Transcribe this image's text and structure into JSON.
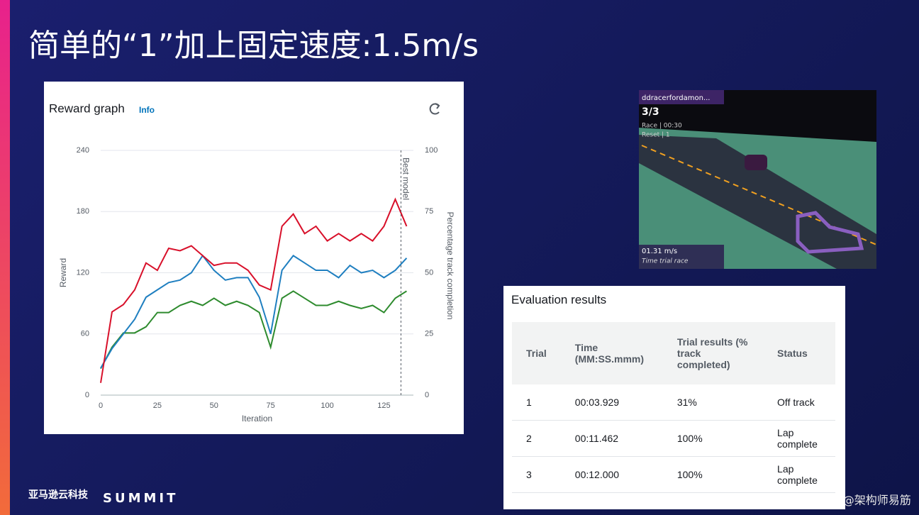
{
  "slide": {
    "title": "简单的“1”加上固定速度:1.5m/s",
    "brand": "亚马逊云科技",
    "event": "SUMMIT",
    "watermark": "CSDN @架构师易筋"
  },
  "panel": {
    "title": "Reward graph",
    "info": "Info"
  },
  "chart_data": {
    "type": "line",
    "x": [
      0,
      5,
      10,
      15,
      20,
      25,
      30,
      35,
      40,
      45,
      50,
      55,
      60,
      65,
      70,
      75,
      80,
      85,
      90,
      95,
      100,
      105,
      110,
      115,
      120,
      125,
      130,
      135
    ],
    "series": [
      {
        "color": "#2e8b2e",
        "values": [
          26,
          47,
          61,
          61,
          67,
          81,
          81,
          88,
          92,
          88,
          95,
          88,
          92,
          88,
          81,
          47,
          95,
          102,
          95,
          88,
          88,
          92,
          88,
          85,
          88,
          81,
          95,
          102
        ]
      },
      {
        "color": "#1f7fc0",
        "axis": "y2",
        "values": [
          11,
          19,
          25,
          31,
          40,
          43,
          46,
          47,
          50,
          57,
          51,
          47,
          48,
          48,
          40,
          25,
          51,
          57,
          54,
          51,
          51,
          48,
          53,
          50,
          51,
          48,
          51,
          56
        ]
      },
      {
        "color": "#d8102a",
        "axis": "y2",
        "values": [
          5,
          34,
          37,
          43,
          54,
          51,
          60,
          59,
          61,
          57,
          53,
          54,
          54,
          51,
          45,
          43,
          69,
          74,
          66,
          69,
          63,
          66,
          63,
          66,
          63,
          69,
          80,
          69
        ]
      }
    ],
    "xlim": [
      0,
      138
    ],
    "xticks": [
      0,
      25,
      50,
      75,
      100,
      125
    ],
    "ylim": [
      0,
      240
    ],
    "yticks": [
      0,
      60,
      120,
      180,
      240
    ],
    "y2lim": [
      0,
      100
    ],
    "y2ticks": [
      0,
      25,
      50,
      75,
      100
    ],
    "xlabel": "Iteration",
    "ylabel": "Reward",
    "y2label": "Percentage track completion",
    "best_model": {
      "x": 132.5,
      "label": "Best model"
    },
    "grid": true
  },
  "video": {
    "racer": "ddracerfordamon...",
    "lap": "3/3",
    "race": "Race | 00:30",
    "reset": "Reset | 1",
    "speed": "01.31 m/s",
    "mode": "Time trial race"
  },
  "table": {
    "title": "Evaluation results",
    "header": [
      "Trial",
      "Time (MM:SS.mmm)",
      "Trial results (% track completed)",
      "Status"
    ],
    "rows": [
      [
        "1",
        "00:03.929",
        "31%",
        "Off track"
      ],
      [
        "2",
        "00:11.462",
        "100%",
        "Lap complete"
      ],
      [
        "3",
        "00:12.000",
        "100%",
        "Lap complete"
      ]
    ]
  }
}
